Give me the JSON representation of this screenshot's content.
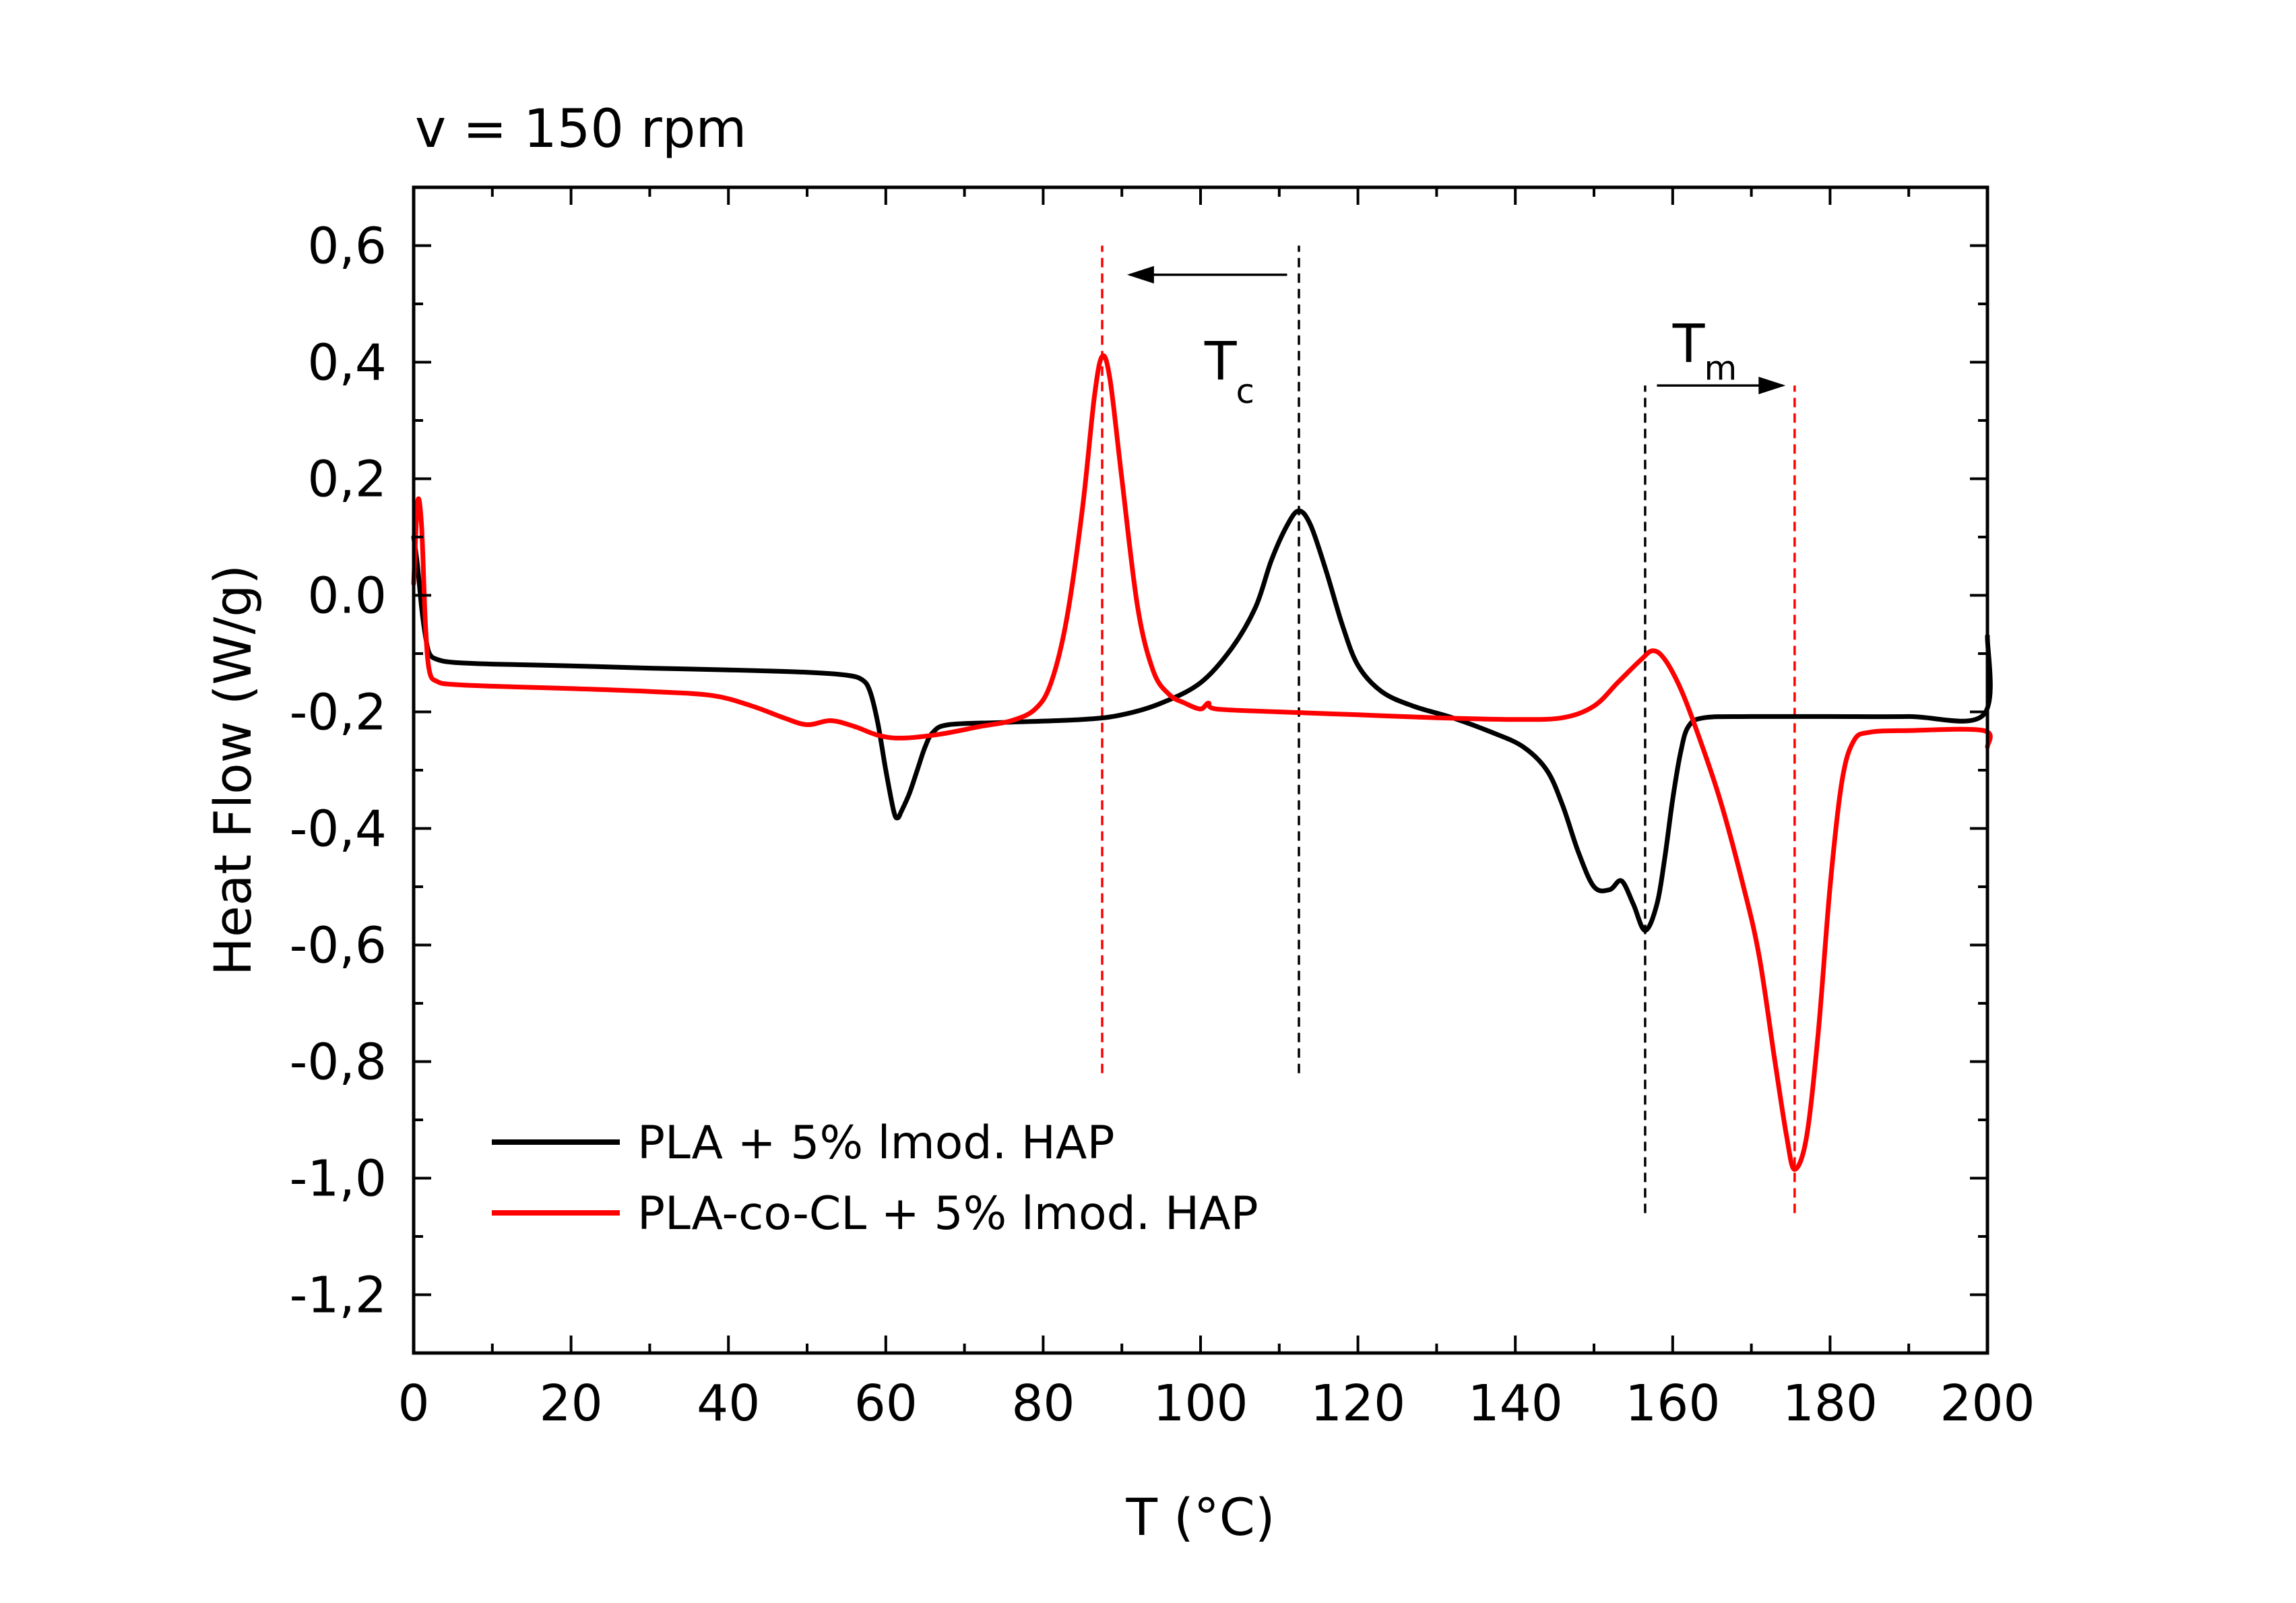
{
  "chart_data": {
    "type": "line",
    "title": "v = 150 rpm",
    "xlabel": "T (°C)",
    "ylabel": "Heat Flow (W/g)",
    "xlim": [
      0,
      200
    ],
    "ylim": [
      -1.3,
      0.7
    ],
    "x_ticks": [
      0,
      20,
      40,
      60,
      80,
      100,
      120,
      140,
      160,
      180,
      200
    ],
    "x_tick_labels": [
      "0",
      "20",
      "40",
      "60",
      "80",
      "100",
      "120",
      "140",
      "160",
      "180",
      "200"
    ],
    "y_ticks": [
      0.6,
      0.4,
      0.2,
      0.0,
      -0.2,
      -0.4,
      -0.6,
      -0.8,
      -1.0,
      -1.2
    ],
    "y_tick_labels": [
      "0,6",
      "0,4",
      "0,2",
      "0.0",
      "-0,2",
      "-0,4",
      "-0,6",
      "-0,8",
      "-1,0",
      "-1,2"
    ],
    "grid": false,
    "legend_position": "bottom-left",
    "series": [
      {
        "name": "PLA + 5% lmod. HAP",
        "color": "#000000",
        "points": [
          [
            0,
            0.1
          ],
          [
            0.5,
            0.05
          ],
          [
            1,
            -0.02
          ],
          [
            1.5,
            -0.07
          ],
          [
            2,
            -0.1
          ],
          [
            3,
            -0.11
          ],
          [
            5,
            -0.115
          ],
          [
            10,
            -0.118
          ],
          [
            20,
            -0.121
          ],
          [
            30,
            -0.125
          ],
          [
            40,
            -0.128
          ],
          [
            50,
            -0.132
          ],
          [
            55,
            -0.137
          ],
          [
            57,
            -0.145
          ],
          [
            58,
            -0.165
          ],
          [
            59,
            -0.22
          ],
          [
            60,
            -0.3
          ],
          [
            61,
            -0.37
          ],
          [
            61.5,
            -0.382
          ],
          [
            62,
            -0.37
          ],
          [
            63,
            -0.34
          ],
          [
            64,
            -0.3
          ],
          [
            65,
            -0.26
          ],
          [
            66,
            -0.235
          ],
          [
            68,
            -0.222
          ],
          [
            75,
            -0.218
          ],
          [
            85,
            -0.213
          ],
          [
            90,
            -0.205
          ],
          [
            95,
            -0.185
          ],
          [
            100,
            -0.15
          ],
          [
            104,
            -0.09
          ],
          [
            107,
            -0.02
          ],
          [
            109,
            0.06
          ],
          [
            111,
            0.12
          ],
          [
            112.5,
            0.145
          ],
          [
            114,
            0.12
          ],
          [
            116,
            0.04
          ],
          [
            118,
            -0.05
          ],
          [
            120,
            -0.12
          ],
          [
            123,
            -0.165
          ],
          [
            127,
            -0.19
          ],
          [
            132,
            -0.21
          ],
          [
            137,
            -0.235
          ],
          [
            141,
            -0.26
          ],
          [
            144,
            -0.3
          ],
          [
            146,
            -0.36
          ],
          [
            148,
            -0.44
          ],
          [
            150,
            -0.5
          ],
          [
            152,
            -0.505
          ],
          [
            153.5,
            -0.49
          ],
          [
            155,
            -0.53
          ],
          [
            156.5,
            -0.575
          ],
          [
            158,
            -0.53
          ],
          [
            159,
            -0.45
          ],
          [
            160,
            -0.35
          ],
          [
            161,
            -0.27
          ],
          [
            162,
            -0.225
          ],
          [
            164,
            -0.21
          ],
          [
            170,
            -0.208
          ],
          [
            180,
            -0.208
          ],
          [
            190,
            -0.208
          ],
          [
            199.5,
            -0.205
          ],
          [
            200,
            -0.07
          ]
        ]
      },
      {
        "name": "PLA-co-CL + 5% lmod. HAP",
        "color": "#ff0000",
        "points": [
          [
            0,
            0.02
          ],
          [
            0.5,
            0.16
          ],
          [
            1,
            0.12
          ],
          [
            1.5,
            -0.05
          ],
          [
            2,
            -0.13
          ],
          [
            3,
            -0.148
          ],
          [
            5,
            -0.153
          ],
          [
            10,
            -0.156
          ],
          [
            20,
            -0.16
          ],
          [
            30,
            -0.165
          ],
          [
            38,
            -0.172
          ],
          [
            43,
            -0.19
          ],
          [
            47,
            -0.21
          ],
          [
            50,
            -0.222
          ],
          [
            53,
            -0.215
          ],
          [
            56,
            -0.225
          ],
          [
            59,
            -0.24
          ],
          [
            62,
            -0.245
          ],
          [
            67,
            -0.238
          ],
          [
            72,
            -0.225
          ],
          [
            76,
            -0.215
          ],
          [
            79,
            -0.195
          ],
          [
            81,
            -0.15
          ],
          [
            83,
            -0.04
          ],
          [
            85,
            0.15
          ],
          [
            86.5,
            0.34
          ],
          [
            87.5,
            0.41
          ],
          [
            88.5,
            0.37
          ],
          [
            90,
            0.2
          ],
          [
            92,
            -0.02
          ],
          [
            94,
            -0.13
          ],
          [
            96,
            -0.17
          ],
          [
            98,
            -0.185
          ],
          [
            100,
            -0.195
          ],
          [
            101,
            -0.185
          ],
          [
            102,
            -0.195
          ],
          [
            110,
            -0.2
          ],
          [
            120,
            -0.205
          ],
          [
            130,
            -0.21
          ],
          [
            140,
            -0.213
          ],
          [
            146,
            -0.21
          ],
          [
            150,
            -0.19
          ],
          [
            153,
            -0.15
          ],
          [
            156,
            -0.11
          ],
          [
            157.5,
            -0.095
          ],
          [
            159,
            -0.11
          ],
          [
            161,
            -0.16
          ],
          [
            163,
            -0.23
          ],
          [
            166,
            -0.35
          ],
          [
            169,
            -0.5
          ],
          [
            171,
            -0.62
          ],
          [
            173,
            -0.8
          ],
          [
            174.5,
            -0.93
          ],
          [
            175.5,
            -0.985
          ],
          [
            177,
            -0.93
          ],
          [
            178.5,
            -0.75
          ],
          [
            180,
            -0.5
          ],
          [
            181.5,
            -0.32
          ],
          [
            183,
            -0.25
          ],
          [
            185,
            -0.235
          ],
          [
            190,
            -0.232
          ],
          [
            199.5,
            -0.232
          ],
          [
            200,
            -0.26
          ]
        ]
      }
    ],
    "reference_lines": [
      {
        "x": 87.5,
        "color": "#ff0000",
        "y_from": -0.82,
        "y_to": 0.6
      },
      {
        "x": 112.5,
        "color": "#000000",
        "y_from": -0.82,
        "y_to": 0.6
      },
      {
        "x": 156.5,
        "color": "#000000",
        "y_from": -1.06,
        "y_to": 0.36
      },
      {
        "x": 175.5,
        "color": "#ff0000",
        "y_from": -1.06,
        "y_to": 0.36
      }
    ],
    "annotations": [
      {
        "label": "T",
        "sub": "c",
        "arrow_from_x": 111,
        "arrow_to_x": 91,
        "arrow_y": 0.55
      },
      {
        "label": "T",
        "sub": "m",
        "arrow_from_x": 158,
        "arrow_to_x": 174,
        "arrow_y": 0.36
      }
    ]
  }
}
